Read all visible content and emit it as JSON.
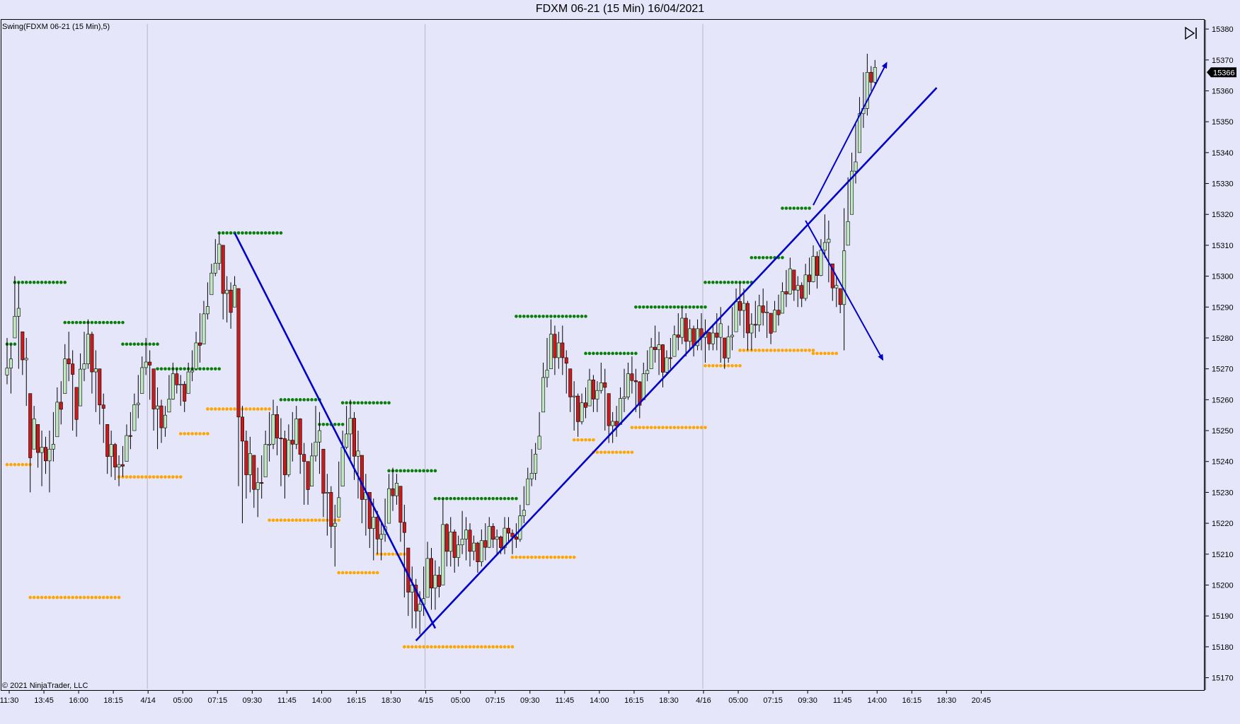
{
  "title": "FDXM 06-21 (15 Min)  16/04/2021",
  "indicator_label": "Swing(FDXM 06-21 (15 Min),5)",
  "copyright": "© 2021 NinjaTrader, LLC",
  "colors": {
    "background": "#e6e6fa",
    "up_candle": "#bfe8bf",
    "down_candle": "#cc1a1a",
    "swing_high": "#0a7d0a",
    "swing_low": "#ffa500",
    "trendline": "#0000cc",
    "price_marker": "#000000"
  },
  "chart_data": {
    "type": "candlestick",
    "ylim": [
      15166,
      15383
    ],
    "y_ticks": [
      15170,
      15180,
      15190,
      15200,
      15210,
      15220,
      15230,
      15240,
      15250,
      15260,
      15270,
      15280,
      15290,
      15300,
      15310,
      15320,
      15330,
      15340,
      15350,
      15360,
      15370,
      15380
    ],
    "x_tick_labels": [
      "11:30",
      "13:45",
      "16:00",
      "18:15",
      "4/14",
      "05:00",
      "07:15",
      "09:30",
      "11:45",
      "14:00",
      "16:15",
      "18:30",
      "4/15",
      "05:00",
      "07:15",
      "09:30",
      "11:45",
      "14:00",
      "16:15",
      "18:30",
      "4/16",
      "05:00",
      "07:15",
      "09:30",
      "11:45",
      "14:00",
      "16:15",
      "18:30",
      "20:45"
    ],
    "x_tick_bars": [
      0,
      9,
      18,
      27,
      36,
      45,
      54,
      63,
      72,
      81,
      90,
      99,
      108,
      117,
      126,
      135,
      144,
      153,
      162,
      171,
      180,
      189,
      198,
      207,
      216,
      225,
      234,
      243,
      252
    ],
    "session_breaks": [
      36,
      108,
      180
    ],
    "last_price": 15366,
    "candles_start": [
      15266,
      15268
    ],
    "candles": [
      [
        15280,
        15265
      ],
      [
        15278,
        15262
      ],
      [
        15300,
        15280
      ],
      [
        15298,
        15270
      ],
      [
        15282,
        15268
      ],
      [
        15280,
        15258
      ],
      [
        15262,
        15230
      ],
      [
        15258,
        15244
      ],
      [
        15252,
        15238
      ],
      [
        15250,
        15232
      ],
      [
        15248,
        15236
      ],
      [
        15250,
        15230
      ],
      [
        15256,
        15240
      ],
      [
        15264,
        15248
      ],
      [
        15266,
        15252
      ],
      [
        15278,
        15262
      ],
      [
        15282,
        15266
      ],
      [
        15276,
        15250
      ],
      [
        15264,
        15248
      ],
      [
        15275,
        15258
      ],
      [
        15282,
        15266
      ],
      [
        15286,
        15270
      ],
      [
        15282,
        15262
      ],
      [
        15276,
        15256
      ],
      [
        15270,
        15252
      ],
      [
        15262,
        15246
      ],
      [
        15252,
        15236
      ],
      [
        15250,
        15235
      ],
      [
        15246,
        15234
      ],
      [
        15242,
        15232
      ],
      [
        15245,
        15235
      ],
      [
        15252,
        15240
      ],
      [
        15256,
        15244
      ],
      [
        15262,
        15250
      ],
      [
        15268,
        15254
      ],
      [
        15274,
        15262
      ],
      [
        15280,
        15268
      ],
      [
        15276,
        15260
      ],
      [
        15270,
        15250
      ],
      [
        15264,
        15244
      ],
      [
        15260,
        15246
      ],
      [
        15258,
        15248
      ],
      [
        15268,
        15256
      ],
      [
        15272,
        15260
      ],
      [
        15270,
        15262
      ],
      [
        15268,
        15258
      ],
      [
        15266,
        15256
      ],
      [
        15272,
        15262
      ],
      [
        15276,
        15266
      ],
      [
        15282,
        15270
      ],
      [
        15288,
        15272
      ],
      [
        15292,
        15278
      ],
      [
        15298,
        15286
      ],
      [
        15304,
        15294
      ],
      [
        15312,
        15300
      ],
      [
        15314,
        15302
      ],
      [
        15310,
        15286
      ],
      [
        15300,
        15285
      ],
      [
        15298,
        15283
      ],
      [
        15300,
        15290
      ],
      [
        15296,
        15232
      ],
      [
        15258,
        15220
      ],
      [
        15250,
        15228
      ],
      [
        15248,
        15230
      ],
      [
        15242,
        15225
      ],
      [
        15238,
        15222
      ],
      [
        15242,
        15228
      ],
      [
        15250,
        15235
      ],
      [
        15256,
        15240
      ],
      [
        15260,
        15244
      ],
      [
        15258,
        15242
      ],
      [
        15254,
        15232
      ],
      [
        15250,
        15228
      ],
      [
        15252,
        15235
      ],
      [
        15256,
        15240
      ],
      [
        15258,
        15244
      ],
      [
        15254,
        15236
      ],
      [
        15246,
        15226
      ],
      [
        15240,
        15226
      ],
      [
        15246,
        15232
      ],
      [
        15258,
        15240
      ],
      [
        15256,
        15236
      ],
      [
        15244,
        15222
      ],
      [
        15236,
        15216
      ],
      [
        15232,
        15212
      ],
      [
        15226,
        15206
      ],
      [
        15240,
        15222
      ],
      [
        15250,
        15232
      ],
      [
        15258,
        15244
      ],
      [
        15260,
        15240
      ],
      [
        15256,
        15234
      ],
      [
        15250,
        15228
      ],
      [
        15242,
        15220
      ],
      [
        15236,
        15216
      ],
      [
        15230,
        15212
      ],
      [
        15228,
        15208
      ],
      [
        15224,
        15210
      ],
      [
        15220,
        15208
      ],
      [
        15228,
        15214
      ],
      [
        15236,
        15220
      ],
      [
        15238,
        15224
      ],
      [
        15236,
        15226
      ],
      [
        15232,
        15214
      ],
      [
        15226,
        15196
      ],
      [
        15212,
        15190
      ],
      [
        15206,
        15186
      ],
      [
        15202,
        15186
      ],
      [
        15198,
        15184
      ],
      [
        15206,
        15190
      ],
      [
        15214,
        15196
      ],
      [
        15212,
        15192
      ],
      [
        15208,
        15192
      ],
      [
        15206,
        15196
      ],
      [
        15228,
        15200
      ],
      [
        15220,
        15206
      ],
      [
        15222,
        15206
      ],
      [
        15218,
        15204
      ],
      [
        15216,
        15206
      ],
      [
        15224,
        15210
      ],
      [
        15222,
        15208
      ],
      [
        15220,
        15206
      ],
      [
        15216,
        15208
      ],
      [
        15214,
        15204
      ],
      [
        15218,
        15206
      ],
      [
        15220,
        15208
      ],
      [
        15222,
        15212
      ],
      [
        15220,
        15212
      ],
      [
        15218,
        15210
      ],
      [
        15216,
        15210
      ],
      [
        15222,
        15210
      ],
      [
        15222,
        15214
      ],
      [
        15218,
        15210
      ],
      [
        15220,
        15212
      ],
      [
        15226,
        15214
      ],
      [
        15232,
        15220
      ],
      [
        15238,
        15226
      ],
      [
        15244,
        15232
      ],
      [
        15246,
        15234
      ],
      [
        15256,
        15244
      ],
      [
        15272,
        15256
      ],
      [
        15280,
        15264
      ],
      [
        15286,
        15270
      ],
      [
        15284,
        15268
      ],
      [
        15282,
        15270
      ],
      [
        15284,
        15268
      ],
      [
        15276,
        15262
      ],
      [
        15270,
        15256
      ],
      [
        15266,
        15250
      ],
      [
        15262,
        15248
      ],
      [
        15262,
        15252
      ],
      [
        15264,
        15254
      ],
      [
        15270,
        15258
      ],
      [
        15268,
        15256
      ],
      [
        15266,
        15256
      ],
      [
        15272,
        15262
      ],
      [
        15270,
        15250
      ],
      [
        15262,
        15246
      ],
      [
        15256,
        15246
      ],
      [
        15258,
        15248
      ],
      [
        15264,
        15252
      ],
      [
        15270,
        15256
      ],
      [
        15272,
        15260
      ],
      [
        15274,
        15262
      ],
      [
        15270,
        15256
      ],
      [
        15266,
        15254
      ],
      [
        15272,
        15260
      ],
      [
        15276,
        15266
      ],
      [
        15280,
        15270
      ],
      [
        15284,
        15272
      ],
      [
        15282,
        15268
      ],
      [
        15278,
        15264
      ],
      [
        15276,
        15268
      ],
      [
        15280,
        15270
      ],
      [
        15284,
        15274
      ],
      [
        15288,
        15276
      ],
      [
        15290,
        15278
      ],
      [
        15288,
        15274
      ],
      [
        15286,
        15276
      ],
      [
        15284,
        15274
      ],
      [
        15286,
        15276
      ],
      [
        15288,
        15276
      ],
      [
        15286,
        15272
      ],
      [
        15282,
        15276
      ],
      [
        15284,
        15276
      ],
      [
        15288,
        15276
      ],
      [
        15290,
        15272
      ],
      [
        15280,
        15270
      ],
      [
        15284,
        15272
      ],
      [
        15290,
        15276
      ],
      [
        15296,
        15282
      ],
      [
        15298,
        15284
      ],
      [
        15296,
        15280
      ],
      [
        15292,
        15276
      ],
      [
        15288,
        15276
      ],
      [
        15292,
        15280
      ],
      [
        15294,
        15282
      ],
      [
        15296,
        15284
      ],
      [
        15292,
        15280
      ],
      [
        15288,
        15278
      ],
      [
        15292,
        15282
      ],
      [
        15294,
        15284
      ],
      [
        15298,
        15288
      ],
      [
        15302,
        15290
      ],
      [
        15306,
        15294
      ],
      [
        15302,
        15292
      ],
      [
        15300,
        15290
      ],
      [
        15298,
        15290
      ],
      [
        15304,
        15292
      ],
      [
        15306,
        15294
      ],
      [
        15310,
        15298
      ],
      [
        15308,
        15296
      ],
      [
        15312,
        15300
      ],
      [
        15320,
        15306
      ],
      [
        15318,
        15298
      ],
      [
        15304,
        15292
      ],
      [
        15300,
        15290
      ],
      [
        15296,
        15288
      ],
      [
        15322,
        15276
      ],
      [
        15332,
        15310
      ],
      [
        15340,
        15320
      ],
      [
        15350,
        15330
      ],
      [
        15358,
        15340
      ],
      [
        15366,
        15348
      ],
      [
        15372,
        15352
      ],
      [
        15368,
        15360
      ],
      [
        15370,
        15362
      ]
    ],
    "swing_highs": [
      {
        "from": 0,
        "to": 2,
        "price": 15278
      },
      {
        "from": 2,
        "to": 15,
        "price": 15298
      },
      {
        "from": 15,
        "to": 30,
        "price": 15285
      },
      {
        "from": 30,
        "to": 39,
        "price": 15278
      },
      {
        "from": 39,
        "to": 49,
        "price": 15270
      },
      {
        "from": 49,
        "to": 55,
        "price": 15270
      },
      {
        "from": 55,
        "to": 71,
        "price": 15314
      },
      {
        "from": 71,
        "to": 81,
        "price": 15260
      },
      {
        "from": 81,
        "to": 87,
        "price": 15252
      },
      {
        "from": 87,
        "to": 99,
        "price": 15259
      },
      {
        "from": 99,
        "to": 111,
        "price": 15237
      },
      {
        "from": 111,
        "to": 132,
        "price": 15228
      },
      {
        "from": 132,
        "to": 150,
        "price": 15287
      },
      {
        "from": 150,
        "to": 163,
        "price": 15275
      },
      {
        "from": 163,
        "to": 181,
        "price": 15290
      },
      {
        "from": 181,
        "to": 193,
        "price": 15298
      },
      {
        "from": 193,
        "to": 201,
        "price": 15306
      },
      {
        "from": 201,
        "to": 208,
        "price": 15322
      }
    ],
    "swing_lows": [
      {
        "from": 0,
        "to": 6,
        "price": 15239
      },
      {
        "from": 6,
        "to": 29,
        "price": 15196
      },
      {
        "from": 29,
        "to": 45,
        "price": 15235
      },
      {
        "from": 45,
        "to": 52,
        "price": 15249
      },
      {
        "from": 52,
        "to": 68,
        "price": 15257
      },
      {
        "from": 68,
        "to": 86,
        "price": 15221
      },
      {
        "from": 86,
        "to": 96,
        "price": 15204
      },
      {
        "from": 96,
        "to": 103,
        "price": 15210
      },
      {
        "from": 103,
        "to": 131,
        "price": 15180
      },
      {
        "from": 131,
        "to": 147,
        "price": 15209
      },
      {
        "from": 147,
        "to": 152,
        "price": 15247
      },
      {
        "from": 152,
        "to": 162,
        "price": 15243
      },
      {
        "from": 162,
        "to": 181,
        "price": 15251
      },
      {
        "from": 181,
        "to": 190,
        "price": 15271
      },
      {
        "from": 190,
        "to": 209,
        "price": 15276
      },
      {
        "from": 209,
        "to": 215,
        "price": 15275
      }
    ],
    "drawings": [
      {
        "type": "line",
        "from": [
          59,
          15314
        ],
        "to": [
          111,
          15186
        ]
      },
      {
        "type": "line",
        "from": [
          106,
          15182
        ],
        "to": [
          241,
          15361
        ]
      },
      {
        "type": "arrow",
        "from": [
          209,
          15323
        ],
        "to": [
          228,
          15369
        ]
      },
      {
        "type": "arrow",
        "from": [
          207,
          15318
        ],
        "to": [
          227,
          15273
        ]
      }
    ]
  }
}
